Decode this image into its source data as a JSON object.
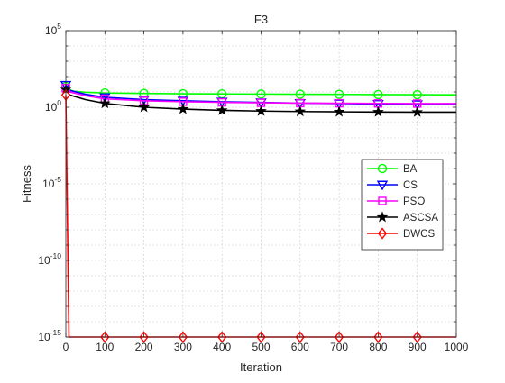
{
  "chart_data": {
    "type": "line",
    "title": "F3",
    "xlabel": "Iteration",
    "ylabel": "Fitness",
    "xlim": [
      0,
      1000
    ],
    "ylim_log10": [
      -15,
      5
    ],
    "yscale": "log",
    "grid": true,
    "xticks": [
      0,
      100,
      200,
      300,
      400,
      500,
      600,
      700,
      800,
      900,
      1000
    ],
    "yticks": [
      {
        "base": "10",
        "exp": "-15",
        "value": -15
      },
      {
        "base": "10",
        "exp": "-10",
        "value": -10
      },
      {
        "base": "10",
        "exp": "-5",
        "value": -5
      },
      {
        "base": "10",
        "exp": "0",
        "value": 0
      },
      {
        "base": "10",
        "exp": "5",
        "value": 5
      }
    ],
    "legend_position": "right",
    "marker_x": [
      0,
      100,
      200,
      300,
      400,
      500,
      600,
      700,
      800,
      900
    ],
    "series": [
      {
        "name": "BA",
        "color": "#00ff00",
        "marker": "circle",
        "points": [
          [
            0,
            1.35
          ],
          [
            5,
            1.2
          ],
          [
            20,
            1.05
          ],
          [
            50,
            0.98
          ],
          [
            100,
            0.93
          ],
          [
            200,
            0.9
          ],
          [
            300,
            0.88
          ],
          [
            400,
            0.87
          ],
          [
            500,
            0.86
          ],
          [
            600,
            0.85
          ],
          [
            700,
            0.84
          ],
          [
            800,
            0.83
          ],
          [
            900,
            0.82
          ],
          [
            1000,
            0.81
          ]
        ]
      },
      {
        "name": "CS",
        "color": "#0000ff",
        "marker": "triangle-down",
        "points": [
          [
            0,
            1.45
          ],
          [
            10,
            1.1
          ],
          [
            50,
            0.85
          ],
          [
            100,
            0.65
          ],
          [
            200,
            0.5
          ],
          [
            300,
            0.42
          ],
          [
            400,
            0.36
          ],
          [
            500,
            0.31
          ],
          [
            600,
            0.27
          ],
          [
            700,
            0.24
          ],
          [
            800,
            0.21
          ],
          [
            900,
            0.19
          ],
          [
            1000,
            0.17
          ]
        ]
      },
      {
        "name": "PSO",
        "color": "#ff00ff",
        "marker": "square",
        "points": [
          [
            0,
            1.25
          ],
          [
            10,
            1.0
          ],
          [
            50,
            0.75
          ],
          [
            100,
            0.55
          ],
          [
            200,
            0.42
          ],
          [
            300,
            0.36
          ],
          [
            400,
            0.32
          ],
          [
            500,
            0.29
          ],
          [
            600,
            0.27
          ],
          [
            700,
            0.26
          ],
          [
            800,
            0.25
          ],
          [
            900,
            0.24
          ],
          [
            1000,
            0.24
          ]
        ]
      },
      {
        "name": "ASCSA",
        "color": "#000000",
        "marker": "star",
        "points": [
          [
            0,
            1.15
          ],
          [
            10,
            0.8
          ],
          [
            50,
            0.5
          ],
          [
            100,
            0.25
          ],
          [
            200,
            0.0
          ],
          [
            300,
            -0.12
          ],
          [
            400,
            -0.2
          ],
          [
            500,
            -0.25
          ],
          [
            600,
            -0.28
          ],
          [
            700,
            -0.3
          ],
          [
            800,
            -0.31
          ],
          [
            900,
            -0.32
          ],
          [
            1000,
            -0.32
          ]
        ]
      },
      {
        "name": "DWCS",
        "color": "#ff0000",
        "marker": "diamond",
        "points": [
          [
            0,
            0.8
          ],
          [
            8,
            -15
          ],
          [
            1000,
            -15
          ]
        ]
      }
    ]
  }
}
